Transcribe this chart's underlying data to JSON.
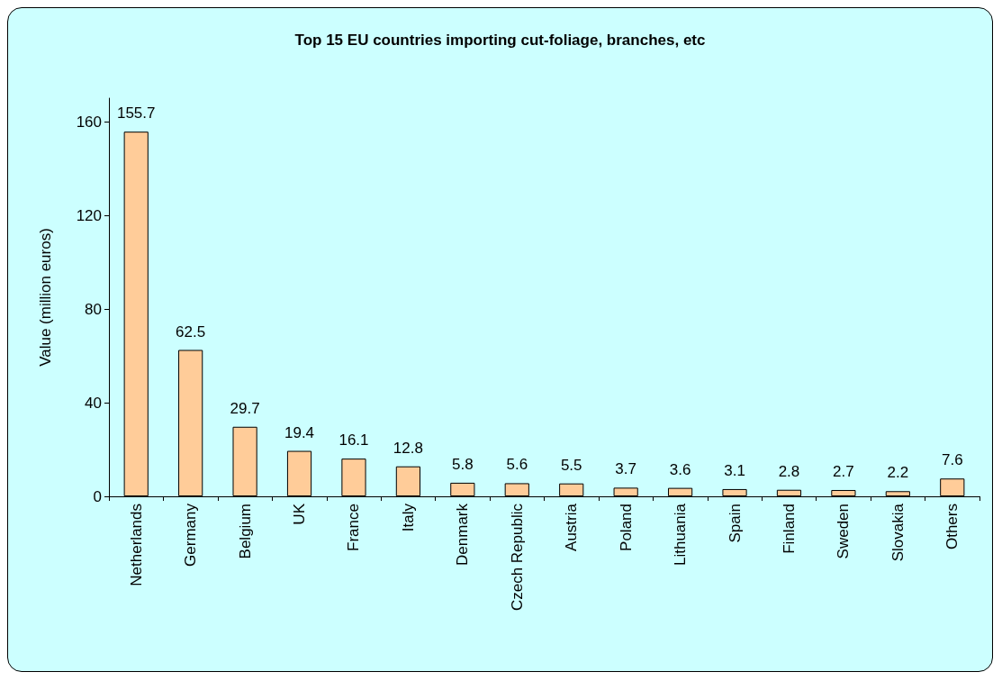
{
  "chart_data": {
    "type": "bar",
    "title": "Top 15 EU countries importing cut-foliage, branches, etc",
    "ylabel": "Value (million euros)",
    "categories": [
      "Netherlands",
      "Germany",
      "Belgium",
      "UK",
      "France",
      "Italy",
      "Denmark",
      "Czech Republic",
      "Austria",
      "Poland",
      "Lithuania",
      "Spain",
      "Finland",
      "Sweden",
      "Slovakia",
      "Others"
    ],
    "values": [
      155.7,
      62.5,
      29.7,
      19.4,
      16.1,
      12.8,
      5.8,
      5.6,
      5.5,
      3.7,
      3.6,
      3.1,
      2.8,
      2.7,
      2.2,
      7.6
    ],
    "color": "#ffcc99",
    "ylim": [
      0,
      170
    ],
    "yticks": [
      0,
      40,
      80,
      120,
      160
    ],
    "grid": false,
    "data_labels": true
  }
}
